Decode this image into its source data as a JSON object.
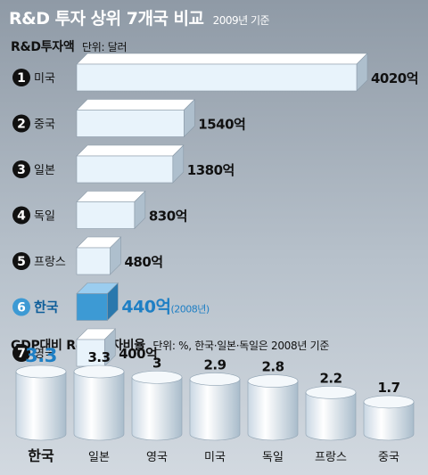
{
  "header": {
    "title": "R&D 투자 상위 7개국 비교",
    "subtitle": "2009년 기준"
  },
  "colors": {
    "bar_face": "#e8f3fb",
    "bar_highlight": "#3d9ad4",
    "highlight_text": "#1e7fc4",
    "marker": "#111111"
  },
  "chart_data": [
    {
      "type": "bar",
      "orientation": "horizontal",
      "title": "R&D투자액",
      "unit_note": "단위: 달러",
      "categories": [
        {
          "rank": "1",
          "name": "미국",
          "value": 4020,
          "label": "4020억",
          "note": "",
          "highlight": false
        },
        {
          "rank": "2",
          "name": "중국",
          "value": 1540,
          "label": "1540억",
          "note": "",
          "highlight": false
        },
        {
          "rank": "3",
          "name": "일본",
          "value": 1380,
          "label": "1380억",
          "note": "",
          "highlight": false
        },
        {
          "rank": "4",
          "name": "독일",
          "value": 830,
          "label": "830억",
          "note": "",
          "highlight": false
        },
        {
          "rank": "5",
          "name": "프랑스",
          "value": 480,
          "label": "480억",
          "note": "",
          "highlight": false
        },
        {
          "rank": "6",
          "name": "한국",
          "value": 440,
          "label": "440억",
          "note": "(2008년)",
          "highlight": true
        },
        {
          "rank": "7",
          "name": "영국",
          "value": 400,
          "label": "400억",
          "note": "",
          "highlight": false
        }
      ]
    },
    {
      "type": "bar",
      "orientation": "vertical",
      "title": "GDP대비 R&D 투자비율",
      "unit_note": "단위: %, 한국·일본·독일은 2008년 기준",
      "categories": [
        {
          "name": "한국",
          "value": 3.3,
          "label": "3.3",
          "highlight": true
        },
        {
          "name": "일본",
          "value": 3.3,
          "label": "3.3",
          "highlight": false
        },
        {
          "name": "영국",
          "value": 3.0,
          "label": "3",
          "highlight": false
        },
        {
          "name": "미국",
          "value": 2.9,
          "label": "2.9",
          "highlight": false
        },
        {
          "name": "독일",
          "value": 2.8,
          "label": "2.8",
          "highlight": false
        },
        {
          "name": "프랑스",
          "value": 2.2,
          "label": "2.2",
          "highlight": false
        },
        {
          "name": "중국",
          "value": 1.7,
          "label": "1.7",
          "highlight": false
        }
      ]
    }
  ]
}
